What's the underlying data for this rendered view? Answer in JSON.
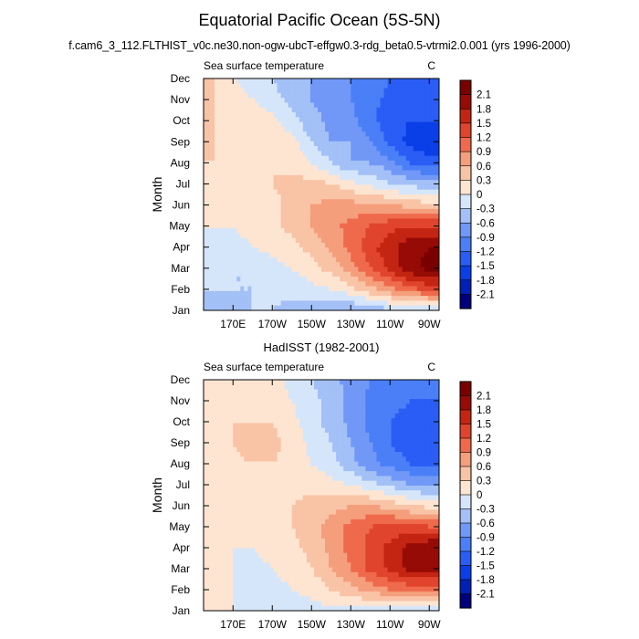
{
  "page": {
    "title": "Equatorial Pacific Ocean (5S-5N)",
    "subtitle": "f.cam6_3_112.FLTHIST_v0c.ne30.non-ogw-ubcT-effgw0.3-rdg_beta0.5-vtrmi2.0.001 (yrs 1996-2000)"
  },
  "chart_data": [
    {
      "type": "heatmap",
      "panel_title": "",
      "left_label": "Sea surface temperature",
      "right_label": "C",
      "ylabel": "Month",
      "xlabel": "",
      "y_ticks": [
        "Jan",
        "Feb",
        "Mar",
        "Apr",
        "May",
        "Jun",
        "Jul",
        "Aug",
        "Sep",
        "Oct",
        "Nov",
        "Dec"
      ],
      "x_ticks": [
        "170E",
        "170W",
        "150W",
        "130W",
        "110W",
        "90W"
      ],
      "x_tick_lon": [
        170,
        190,
        210,
        230,
        250,
        270
      ],
      "x_range_lon": [
        155,
        275
      ],
      "levels": [
        -2.1,
        -1.8,
        -1.5,
        -1.2,
        -0.9,
        -0.6,
        -0.3,
        0,
        0.3,
        0.6,
        0.9,
        1.2,
        1.5,
        1.8,
        2.1
      ],
      "colors": [
        "#00007d",
        "#0021b5",
        "#0a3ee6",
        "#2a5df5",
        "#4a7ff7",
        "#7198f7",
        "#a3c0f7",
        "#d6e6fa",
        "#fde5d2",
        "#f9c3a6",
        "#f59e7c",
        "#ef6a4c",
        "#e0442c",
        "#c42412",
        "#960b06",
        "#7a0000"
      ],
      "lon": [
        160,
        170,
        180,
        190,
        200,
        210,
        220,
        230,
        240,
        250,
        260,
        270
      ],
      "values": [
        [
          -0.4,
          -0.4,
          -0.3,
          -0.3,
          -0.4,
          -0.5,
          -0.6,
          -0.6,
          -0.5,
          -0.4,
          -0.3,
          -0.3
        ],
        [
          -0.3,
          -0.3,
          -0.3,
          -0.2,
          -0.2,
          -0.1,
          0.0,
          0.2,
          0.5,
          0.8,
          1.1,
          1.3
        ],
        [
          -0.2,
          -0.3,
          -0.3,
          -0.1,
          0.0,
          0.2,
          0.4,
          0.8,
          1.2,
          1.6,
          2.0,
          2.2
        ],
        [
          -0.1,
          -0.1,
          0.0,
          0.1,
          0.2,
          0.4,
          0.7,
          1.0,
          1.4,
          1.7,
          2.0,
          2.1
        ],
        [
          0.0,
          0.0,
          0.1,
          0.2,
          0.4,
          0.6,
          0.8,
          1.0,
          1.2,
          1.4,
          1.5,
          1.5
        ],
        [
          0.1,
          0.1,
          0.1,
          0.2,
          0.4,
          0.6,
          0.7,
          0.7,
          0.7,
          0.6,
          0.5,
          0.4
        ],
        [
          0.2,
          0.2,
          0.2,
          0.3,
          0.4,
          0.4,
          0.3,
          0.1,
          -0.1,
          -0.3,
          -0.4,
          -0.5
        ],
        [
          0.3,
          0.2,
          0.2,
          0.3,
          0.2,
          0.0,
          -0.3,
          -0.6,
          -0.6,
          -0.8,
          -1.2,
          -1.4
        ],
        [
          0.3,
          0.2,
          0.2,
          0.3,
          0.1,
          -0.3,
          -0.6,
          -0.6,
          -0.9,
          -1.3,
          -1.6,
          -1.7
        ],
        [
          0.3,
          0.2,
          0.2,
          0.1,
          -0.2,
          -0.5,
          -0.7,
          -0.8,
          -1.1,
          -1.4,
          -1.5,
          -1.5
        ],
        [
          0.3,
          0.1,
          0.0,
          -0.2,
          -0.4,
          -0.6,
          -0.7,
          -0.9,
          -1.1,
          -1.3,
          -1.3,
          -1.3
        ],
        [
          0.3,
          0.0,
          -0.1,
          -0.3,
          -0.5,
          -0.6,
          -0.7,
          -0.9,
          -1.0,
          -1.2,
          -1.3,
          -1.3
        ]
      ]
    },
    {
      "type": "heatmap",
      "panel_title": "HadISST (1982-2001)",
      "left_label": "Sea surface temperature",
      "right_label": "C",
      "ylabel": "Month",
      "xlabel": "",
      "y_ticks": [
        "Jan",
        "Feb",
        "Mar",
        "Apr",
        "May",
        "Jun",
        "Jul",
        "Aug",
        "Sep",
        "Oct",
        "Nov",
        "Dec"
      ],
      "x_ticks": [
        "170E",
        "170W",
        "150W",
        "130W",
        "110W",
        "90W"
      ],
      "x_tick_lon": [
        170,
        190,
        210,
        230,
        250,
        270
      ],
      "x_range_lon": [
        155,
        275
      ],
      "levels": [
        -2.1,
        -1.8,
        -1.5,
        -1.2,
        -0.9,
        -0.6,
        -0.3,
        0,
        0.3,
        0.6,
        0.9,
        1.2,
        1.5,
        1.8,
        2.1
      ],
      "colors": [
        "#00007d",
        "#0021b5",
        "#0a3ee6",
        "#2a5df5",
        "#4a7ff7",
        "#7198f7",
        "#a3c0f7",
        "#d6e6fa",
        "#fde5d2",
        "#f9c3a6",
        "#f59e7c",
        "#ef6a4c",
        "#e0442c",
        "#c42412",
        "#960b06",
        "#7a0000"
      ],
      "lon": [
        160,
        170,
        180,
        190,
        200,
        210,
        220,
        230,
        240,
        250,
        260,
        270
      ],
      "values": [
        [
          0.1,
          0.0,
          -0.1,
          -0.2,
          -0.2,
          -0.1,
          -0.1,
          -0.1,
          -0.1,
          -0.2,
          -0.3,
          -0.4
        ],
        [
          0.1,
          0.0,
          -0.1,
          -0.1,
          0.0,
          0.1,
          0.3,
          0.5,
          0.7,
          0.9,
          1.0,
          1.0
        ],
        [
          0.1,
          0.0,
          -0.1,
          0.0,
          0.1,
          0.3,
          0.6,
          0.9,
          1.3,
          1.6,
          1.9,
          2.0
        ],
        [
          0.1,
          0.0,
          0.0,
          0.1,
          0.2,
          0.4,
          0.7,
          1.0,
          1.3,
          1.6,
          1.9,
          2.1
        ],
        [
          0.1,
          0.1,
          0.1,
          0.2,
          0.3,
          0.5,
          0.7,
          1.0,
          1.2,
          1.3,
          1.3,
          1.2
        ],
        [
          0.2,
          0.2,
          0.2,
          0.2,
          0.3,
          0.4,
          0.5,
          0.6,
          0.6,
          0.5,
          0.3,
          0.2
        ],
        [
          0.2,
          0.2,
          0.2,
          0.2,
          0.2,
          0.2,
          0.1,
          0.0,
          -0.2,
          -0.4,
          -0.6,
          -0.7
        ],
        [
          0.1,
          0.2,
          0.3,
          0.3,
          0.2,
          0.0,
          -0.2,
          -0.5,
          -0.8,
          -1.0,
          -1.2,
          -1.3
        ],
        [
          0.1,
          0.3,
          0.5,
          0.4,
          0.2,
          -0.1,
          -0.3,
          -0.6,
          -0.9,
          -1.2,
          -1.4,
          -1.5
        ],
        [
          0.1,
          0.3,
          0.3,
          0.3,
          0.1,
          -0.2,
          -0.4,
          -0.7,
          -1.0,
          -1.2,
          -1.3,
          -1.4
        ],
        [
          0.1,
          0.2,
          0.2,
          0.2,
          0.0,
          -0.2,
          -0.4,
          -0.7,
          -1.0,
          -1.1,
          -1.2,
          -1.2
        ],
        [
          0.1,
          0.2,
          0.2,
          0.1,
          -0.1,
          -0.3,
          -0.5,
          -0.7,
          -0.9,
          -1.0,
          -1.1,
          -1.1
        ]
      ]
    }
  ]
}
